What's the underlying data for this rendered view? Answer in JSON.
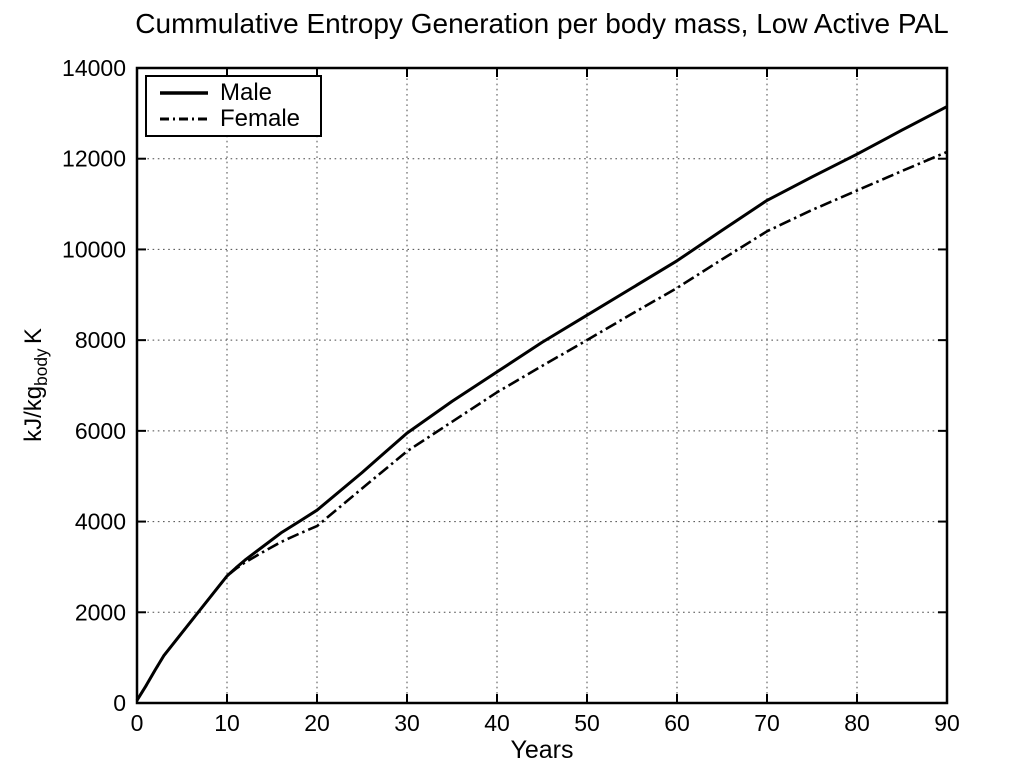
{
  "colors": {
    "line": "#000000",
    "grid": "#4a4a4a",
    "background": "#ffffff"
  },
  "chart_data": {
    "type": "line",
    "title": "Cummulative Entropy Generation per body mass, Low Active PAL",
    "xlabel": "Years",
    "ylabel": "kJ/kg_body K",
    "ylabel_parts": {
      "main": "kJ/kg",
      "sub": "body",
      "suffix": "K"
    },
    "xlim": [
      0,
      90
    ],
    "ylim": [
      0,
      14000
    ],
    "xticks": [
      0,
      10,
      20,
      30,
      40,
      50,
      60,
      70,
      80,
      90
    ],
    "yticks": [
      0,
      2000,
      4000,
      6000,
      8000,
      10000,
      12000,
      14000
    ],
    "grid": true,
    "grid_style": "dotted",
    "legend_position": "top-left",
    "x": [
      0,
      1,
      2,
      3,
      5,
      7,
      9,
      10,
      11,
      12,
      14,
      16,
      18,
      20,
      25,
      30,
      35,
      40,
      45,
      50,
      55,
      60,
      65,
      70,
      75,
      80,
      85,
      90
    ],
    "series": [
      {
        "name": "Male",
        "style": "solid",
        "values": [
          60,
          380,
          720,
          1050,
          1550,
          2050,
          2550,
          2800,
          2980,
          3150,
          3450,
          3750,
          4000,
          4250,
          5080,
          5950,
          6650,
          7300,
          7950,
          8550,
          9150,
          9750,
          10420,
          11080,
          11600,
          12100,
          12630,
          13150
        ]
      },
      {
        "name": "Female",
        "style": "dash-dot",
        "values": [
          60,
          380,
          720,
          1050,
          1550,
          2050,
          2550,
          2800,
          2960,
          3100,
          3330,
          3550,
          3730,
          3900,
          4730,
          5550,
          6200,
          6850,
          7430,
          8000,
          8580,
          9150,
          9780,
          10400,
          10870,
          11300,
          11730,
          12150
        ]
      }
    ]
  }
}
